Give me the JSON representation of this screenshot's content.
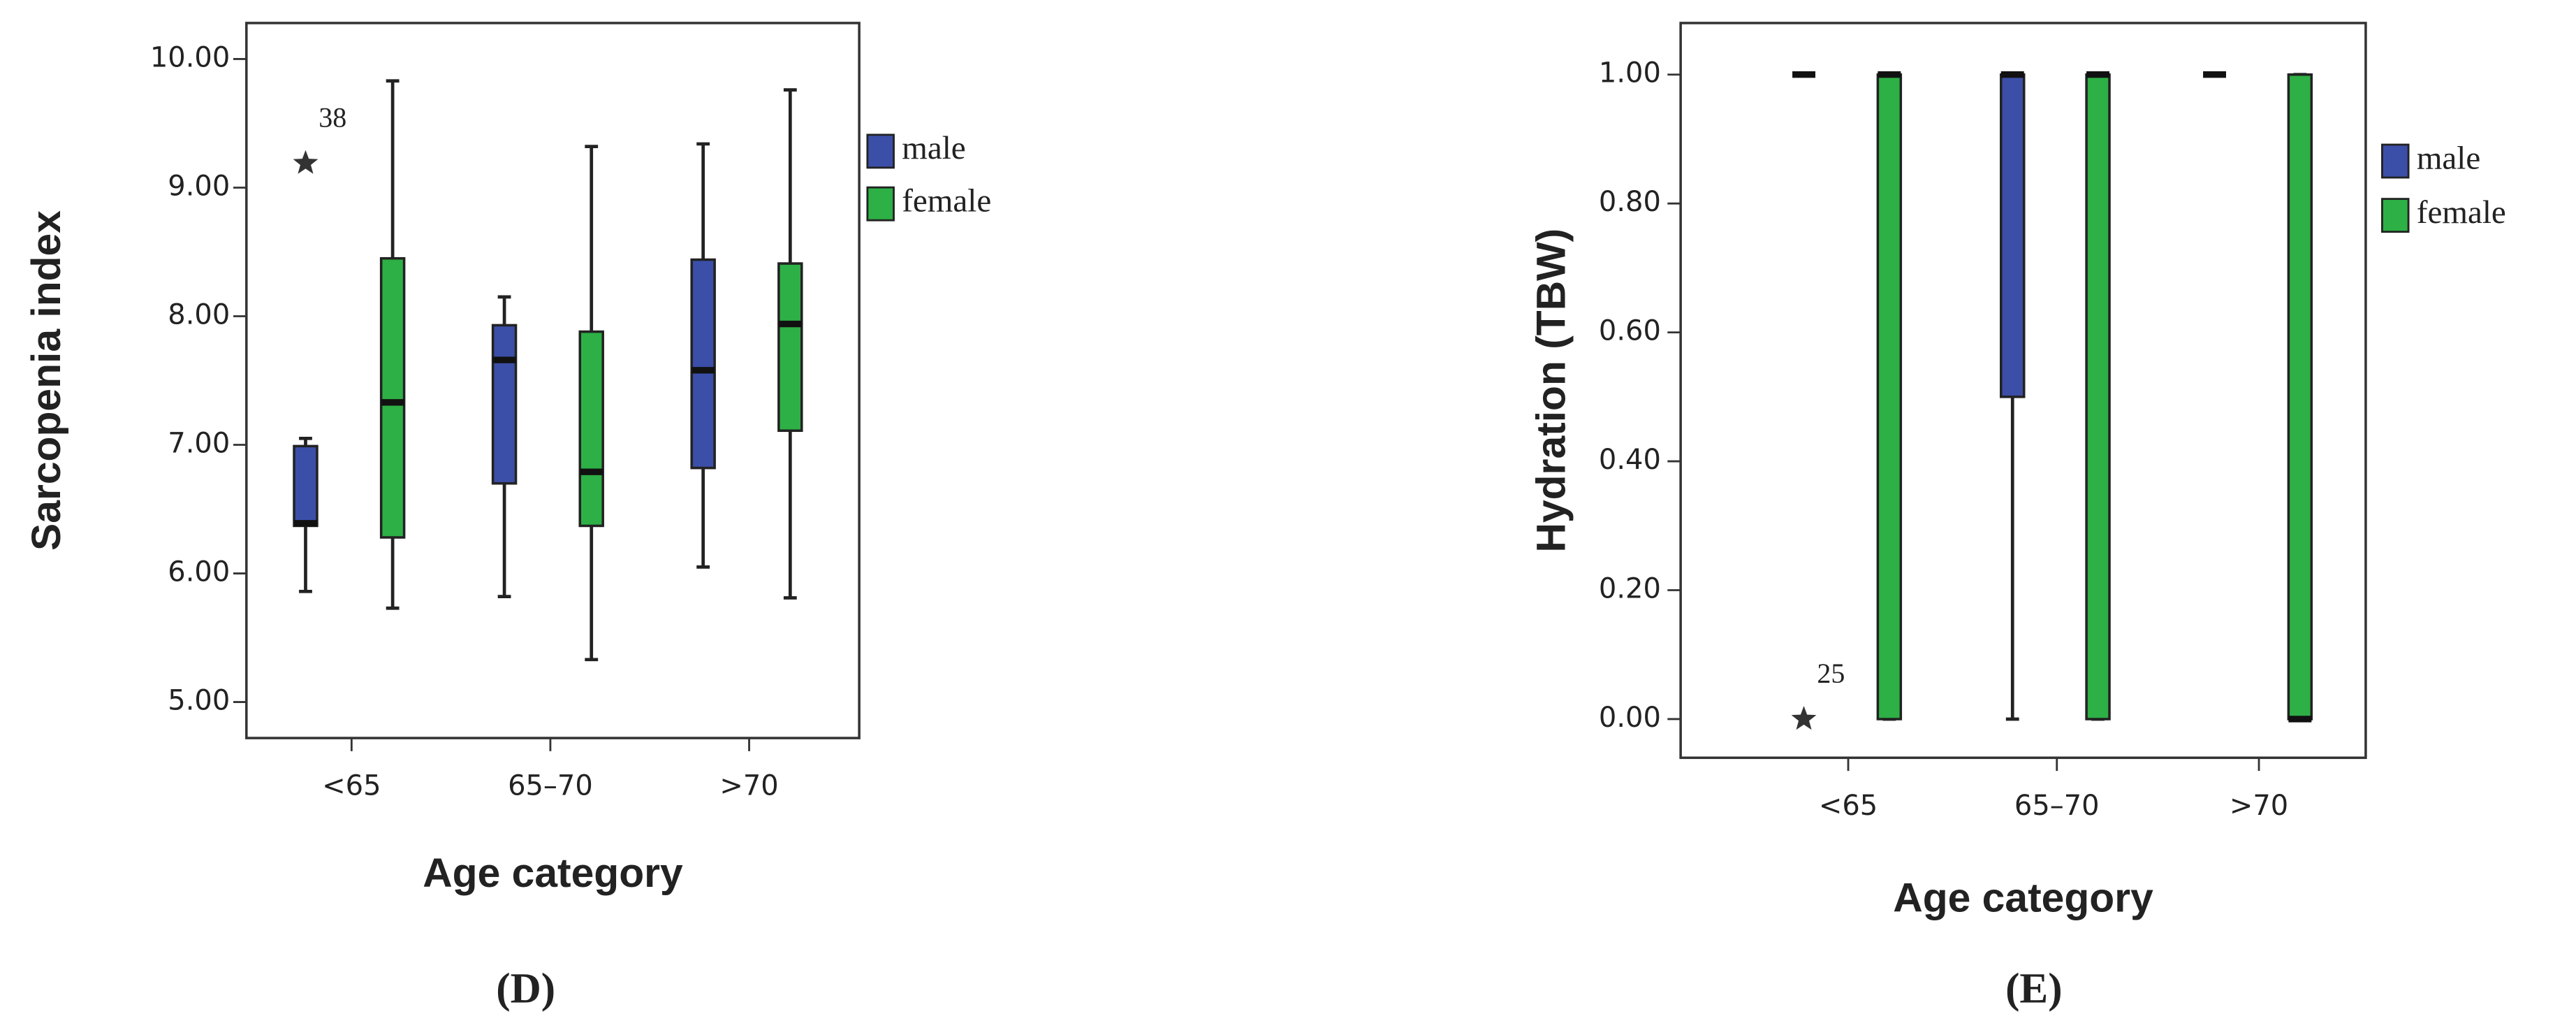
{
  "chart_data": [
    {
      "type": "box",
      "caption": "(D)",
      "y_label": "Sarcopenia index",
      "x_label": "Age category",
      "categories": [
        "<65",
        "65–70",
        ">70"
      ],
      "ylim": [
        4.72,
        10.28
      ],
      "yticks": [
        {
          "value": 5,
          "label": "5.00"
        },
        {
          "value": 6,
          "label": "6.00"
        },
        {
          "value": 7,
          "label": "7.00"
        },
        {
          "value": 8,
          "label": "8.00"
        },
        {
          "value": 9,
          "label": "9.00"
        },
        {
          "value": 10,
          "label": "10.00"
        }
      ],
      "series": [
        {
          "name": "male",
          "color": "#3b4fa8",
          "boxes": [
            {
              "min": 5.86,
              "q1": 6.37,
              "median": 6.39,
              "q3": 6.99,
              "max": 7.05,
              "outliers": [
                {
                  "value": 9.19,
                  "label": "38"
                }
              ]
            },
            {
              "min": 5.82,
              "q1": 6.7,
              "median": 7.66,
              "q3": 7.93,
              "max": 8.15
            },
            {
              "min": 6.05,
              "q1": 6.82,
              "median": 7.58,
              "q3": 8.44,
              "max": 9.34
            }
          ]
        },
        {
          "name": "female",
          "color": "#2db045",
          "boxes": [
            {
              "min": 5.73,
              "q1": 6.28,
              "median": 7.33,
              "q3": 8.45,
              "max": 9.83
            },
            {
              "min": 5.33,
              "q1": 6.37,
              "median": 6.79,
              "q3": 7.88,
              "max": 9.32
            },
            {
              "min": 5.81,
              "q1": 7.11,
              "median": 7.94,
              "q3": 8.41,
              "max": 9.76
            }
          ]
        }
      ]
    },
    {
      "type": "box",
      "caption": "(E)",
      "y_label": "Hydration (TBW)",
      "x_label": "Age category",
      "categories": [
        "<65",
        "65–70",
        ">70"
      ],
      "ylim": [
        -0.06,
        1.08
      ],
      "yticks": [
        {
          "value": 0,
          "label": "0.00"
        },
        {
          "value": 0.2,
          "label": "0.20"
        },
        {
          "value": 0.4,
          "label": "0.40"
        },
        {
          "value": 0.6,
          "label": "0.60"
        },
        {
          "value": 0.8,
          "label": "0.80"
        },
        {
          "value": 1,
          "label": "1.00"
        }
      ],
      "series": [
        {
          "name": "male",
          "color": "#3b4fa8",
          "boxes": [
            {
              "min": 1,
              "q1": 1,
              "median": 1,
              "q3": 1,
              "max": 1,
              "outliers": [
                {
                  "value": 0,
                  "label": "25"
                }
              ]
            },
            {
              "min": 0,
              "q1": 0.5,
              "median": 1,
              "q3": 1,
              "max": 1
            },
            {
              "min": 1,
              "q1": 1,
              "median": 1,
              "q3": 1,
              "max": 1
            }
          ]
        },
        {
          "name": "female",
          "color": "#2db045",
          "boxes": [
            {
              "min": 0,
              "q1": 0,
              "median": 1,
              "q3": 1,
              "max": 1
            },
            {
              "min": 0,
              "q1": 0,
              "median": 1,
              "q3": 1,
              "max": 1
            },
            {
              "min": 0,
              "q1": 0,
              "median": 0,
              "q3": 1,
              "max": 1
            }
          ]
        }
      ]
    }
  ]
}
